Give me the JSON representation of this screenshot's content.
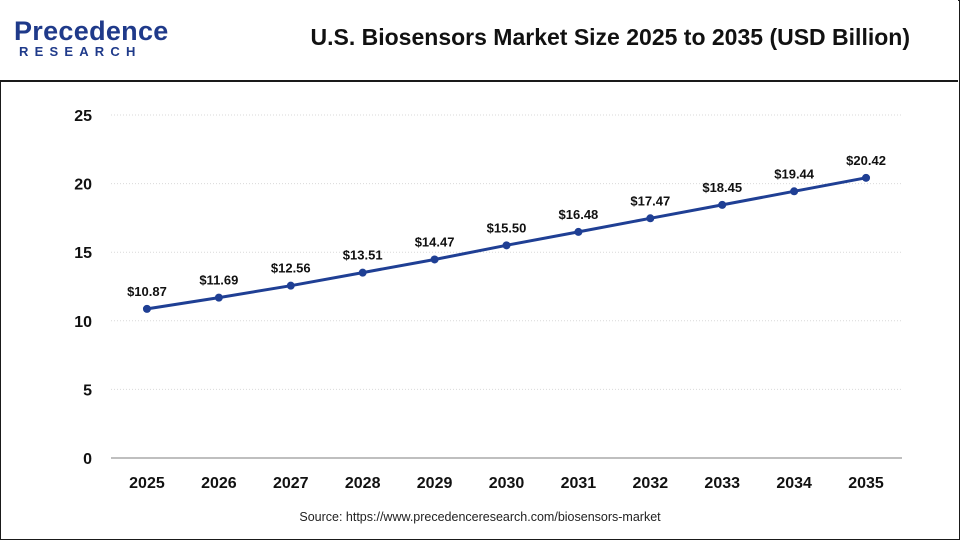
{
  "header": {
    "logo_top": "Precedence",
    "logo_bottom": "RESEARCH",
    "title": "U.S. Biosensors Market Size 2025 to 2035 (USD Billion)"
  },
  "source": "Source: https://www.precedenceresearch.com/biosensors-market",
  "colors": {
    "series": "#1f3f94",
    "grid": "#d9d9d9",
    "axis": "#999999",
    "brand": "#1f3a8a"
  },
  "chart_data": {
    "type": "line",
    "title": "U.S. Biosensors Market Size 2025 to 2035 (USD Billion)",
    "xlabel": "",
    "ylabel": "",
    "categories": [
      "2025",
      "2026",
      "2027",
      "2028",
      "2029",
      "2030",
      "2031",
      "2032",
      "2033",
      "2034",
      "2035"
    ],
    "series": [
      {
        "name": "U.S. Biosensors Market Size",
        "values": [
          10.87,
          11.69,
          12.56,
          13.51,
          14.47,
          15.5,
          16.48,
          17.47,
          18.45,
          19.44,
          20.42
        ],
        "labels": [
          "$10.87",
          "$11.69",
          "$12.56",
          "$13.51",
          "$14.47",
          "$15.50",
          "$16.48",
          "$17.47",
          "$18.45",
          "$19.44",
          "$20.42"
        ]
      }
    ],
    "ylim": [
      0,
      25
    ],
    "yticks": [
      0,
      5,
      10,
      15,
      20,
      25
    ],
    "grid": true,
    "legend": "none"
  }
}
